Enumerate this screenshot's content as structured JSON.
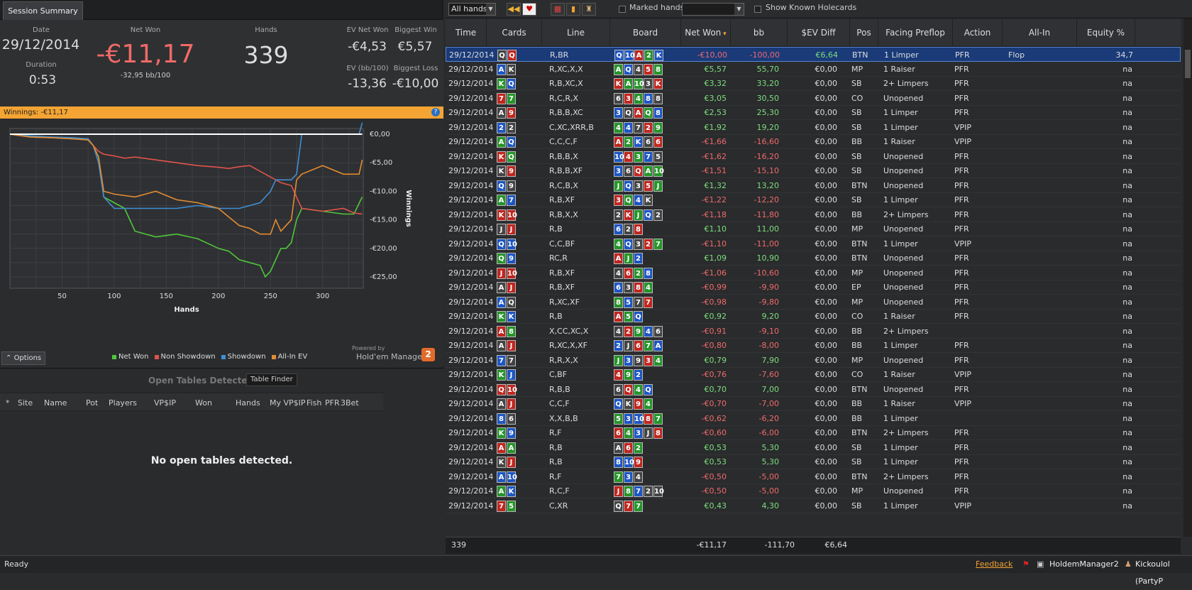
{
  "left_panel": {
    "tab": "Session Summary",
    "date_label": "Date",
    "date_value": "29/12/2014",
    "duration_label": "Duration",
    "duration_value": "0:53",
    "netwon_label": "Net Won",
    "netwon_value": "-€11,17",
    "netwon_sub": "-32,95 bb/100",
    "hands_label": "Hands",
    "hands_value": "339",
    "evnet_label": "EV Net Won",
    "evnet_value": "-€4,53",
    "evbb_label": "EV (bb/100)",
    "evbb_value": "-13,36",
    "bigwin_label": "Biggest Win",
    "bigwin_value": "€5,57",
    "bigloss_label": "Biggest Loss",
    "bigloss_value": "-€10,00",
    "winnings_bar": "Winnings:  -€11,17",
    "options_label": "Options",
    "powered_by": "Powered by",
    "hm_logo_text": "Hold'em Manager",
    "hm_logo_badge": "2"
  },
  "chart_data": {
    "type": "line",
    "xlabel": "Hands",
    "ylabel": "Winnings",
    "xlim": [
      0,
      339
    ],
    "ylim": [
      -27,
      1
    ],
    "x_ticks": [
      "50",
      "100",
      "150",
      "200",
      "250",
      "300"
    ],
    "y_ticks": [
      "€0,00",
      "-€5,00",
      "-€10,00",
      "-€15,00",
      "-€20,00",
      "-€25,00"
    ],
    "grid": true,
    "legend_position": "bottom",
    "series": [
      {
        "name": "Net Won",
        "color": "#4ec83a",
        "x": [
          0,
          20,
          40,
          60,
          75,
          80,
          85,
          90,
          100,
          110,
          120,
          140,
          160,
          180,
          200,
          210,
          220,
          230,
          240,
          245,
          250,
          255,
          260,
          265,
          270,
          275,
          280,
          300,
          320,
          330,
          338
        ],
        "values": [
          0,
          -0.5,
          -0.6,
          -0.8,
          -1,
          -2,
          -4,
          -11,
          -12,
          -13,
          -17,
          -18,
          -17.5,
          -18.3,
          -20,
          -20.5,
          -22,
          -22.5,
          -23,
          -25,
          -24,
          -22,
          -20,
          -20,
          -19,
          -15,
          -13,
          -13.5,
          -14,
          -14,
          -11
        ]
      },
      {
        "name": "Non Showdown",
        "color": "#e0534b",
        "x": [
          0,
          20,
          40,
          60,
          75,
          80,
          85,
          90,
          100,
          110,
          120,
          140,
          160,
          180,
          200,
          210,
          220,
          230,
          240,
          250,
          260,
          270,
          280,
          300,
          320,
          330,
          338
        ],
        "values": [
          0,
          -0.5,
          -0.6,
          -0.8,
          -1,
          -2,
          -3,
          -3.5,
          -3.8,
          -4.2,
          -4,
          -4.5,
          -5,
          -5.5,
          -5.8,
          -6,
          -5.7,
          -5.5,
          -6.5,
          -7.5,
          -8.5,
          -9,
          -13,
          -13.5,
          -13,
          -13.8,
          -14
        ]
      },
      {
        "name": "Showdown",
        "color": "#3e8fd6",
        "x": [
          0,
          20,
          40,
          60,
          75,
          80,
          85,
          90,
          100,
          120,
          140,
          160,
          180,
          200,
          220,
          240,
          250,
          255,
          260,
          270,
          275,
          280,
          300,
          320,
          335,
          338
        ],
        "values": [
          0,
          -0.3,
          -0.5,
          -0.6,
          -0.8,
          -2,
          -5,
          -11,
          -13,
          -13,
          -13,
          -13,
          -12.5,
          -13,
          -13,
          -12,
          -10,
          -8,
          -8,
          -8,
          -7,
          0,
          0,
          0,
          0,
          2
        ]
      },
      {
        "name": "All-In EV",
        "color": "#e38b32",
        "x": [
          0,
          20,
          40,
          60,
          75,
          80,
          85,
          90,
          100,
          120,
          140,
          160,
          180,
          200,
          210,
          220,
          230,
          240,
          250,
          255,
          260,
          270,
          275,
          280,
          300,
          320,
          335,
          338
        ],
        "values": [
          0,
          -0.5,
          -0.6,
          -0.8,
          -1,
          -2,
          -4,
          -10,
          -10.5,
          -11,
          -10,
          -11.5,
          -12,
          -13,
          -14.5,
          -16,
          -16.5,
          -17.5,
          -17.5,
          -15,
          -17,
          -15,
          -8,
          -7,
          -5.5,
          -7,
          -7,
          -4.5
        ]
      },
      {
        "name": "",
        "color": "#ffffff",
        "x": [
          0,
          338
        ],
        "values": [
          0,
          0
        ]
      }
    ]
  },
  "open_tables": {
    "title": "Open Tables Detected",
    "finder": "Table Finder",
    "columns": [
      "*",
      "Site",
      "Name",
      "Pot",
      "Players",
      "VP$IP",
      "Won",
      "Hands",
      "My VP$IP",
      "Fish",
      "PFR",
      "3Bet"
    ],
    "empty": "No open tables detected."
  },
  "toolbar": {
    "filter": "All hands",
    "marked_label": "Marked hands",
    "known_label": "Show Known Holecards"
  },
  "grid": {
    "columns": [
      "Time",
      "Cards",
      "Line",
      "Board",
      "Net Won",
      "bb",
      "$EV Diff",
      "Pos",
      "Facing Preflop",
      "Action",
      "All-In",
      "Equity %"
    ],
    "rows": [
      [
        "29/12/2014",
        [
          "Q",
          "Q"
        ],
        "R,BR",
        [
          "Q",
          "10",
          "A",
          "2",
          "K"
        ],
        "-€10,00",
        "-100,00",
        "€6,64",
        "BTN",
        "1 Limper",
        "PFR",
        "Flop",
        "34,7"
      ],
      [
        "29/12/2014",
        [
          "A",
          "K"
        ],
        "R,XC,X,X",
        [
          "A",
          "Q",
          "4",
          "5",
          "8"
        ],
        "€5,57",
        "55,70",
        "€0,00",
        "MP",
        "1 Raiser",
        "PFR",
        "",
        "na"
      ],
      [
        "29/12/2014",
        [
          "K",
          "Q"
        ],
        "R,B,XC,X",
        [
          "K",
          "A",
          "10",
          "3",
          "K"
        ],
        "€3,32",
        "33,20",
        "€0,00",
        "SB",
        "2+ Limpers",
        "PFR",
        "",
        "na"
      ],
      [
        "29/12/2014",
        [
          "7",
          "7"
        ],
        "R,C,R,X",
        [
          "6",
          "3",
          "4",
          "8",
          "8"
        ],
        "€3,05",
        "30,50",
        "€0,00",
        "CO",
        "Unopened",
        "PFR",
        "",
        "na"
      ],
      [
        "29/12/2014",
        [
          "A",
          "9"
        ],
        "R,B,B,XC",
        [
          "3",
          "Q",
          "A",
          "Q",
          "8"
        ],
        "€2,53",
        "25,30",
        "€0,00",
        "SB",
        "1 Limper",
        "PFR",
        "",
        "na"
      ],
      [
        "29/12/2014",
        [
          "2",
          "2"
        ],
        "C,XC,XRR,B",
        [
          "4",
          "4",
          "7",
          "2",
          "9"
        ],
        "€1,92",
        "19,20",
        "€0,00",
        "SB",
        "1 Limper",
        "VPIP",
        "",
        "na"
      ],
      [
        "29/12/2014",
        [
          "A",
          "Q"
        ],
        "C,C,C,F",
        [
          "A",
          "2",
          "K",
          "6",
          "6"
        ],
        "-€1,66",
        "-16,60",
        "€0,00",
        "BB",
        "1 Raiser",
        "VPIP",
        "",
        "na"
      ],
      [
        "29/12/2014",
        [
          "K",
          "Q"
        ],
        "R,B,B,X",
        [
          "10",
          "4",
          "3",
          "7",
          "5"
        ],
        "-€1,62",
        "-16,20",
        "€0,00",
        "SB",
        "Unopened",
        "PFR",
        "",
        "na"
      ],
      [
        "29/12/2014",
        [
          "K",
          "9"
        ],
        "R,B,B,XF",
        [
          "3",
          "6",
          "Q",
          "A",
          "10"
        ],
        "-€1,51",
        "-15,10",
        "€0,00",
        "SB",
        "Unopened",
        "PFR",
        "",
        "na"
      ],
      [
        "29/12/2014",
        [
          "Q",
          "9"
        ],
        "R,C,B,X",
        [
          "J",
          "Q",
          "3",
          "5",
          "J"
        ],
        "€1,32",
        "13,20",
        "€0,00",
        "BTN",
        "Unopened",
        "PFR",
        "",
        "na"
      ],
      [
        "29/12/2014",
        [
          "A",
          "7"
        ],
        "R,B,XF",
        [
          "3",
          "Q",
          "4",
          "K"
        ],
        "-€1,22",
        "-12,20",
        "€0,00",
        "SB",
        "1 Limper",
        "PFR",
        "",
        "na"
      ],
      [
        "29/12/2014",
        [
          "K",
          "10"
        ],
        "R,B,X,X",
        [
          "2",
          "K",
          "J",
          "Q",
          "2"
        ],
        "-€1,18",
        "-11,80",
        "€0,00",
        "BB",
        "2+ Limpers",
        "PFR",
        "",
        "na"
      ],
      [
        "29/12/2014",
        [
          "J",
          "J"
        ],
        "R,B",
        [
          "6",
          "2",
          "8"
        ],
        "€1,10",
        "11,00",
        "€0,00",
        "MP",
        "Unopened",
        "PFR",
        "",
        "na"
      ],
      [
        "29/12/2014",
        [
          "Q",
          "10"
        ],
        "C,C,BF",
        [
          "4",
          "Q",
          "3",
          "2",
          "7"
        ],
        "-€1,10",
        "-11,00",
        "€0,00",
        "BTN",
        "1 Limper",
        "VPIP",
        "",
        "na"
      ],
      [
        "29/12/2014",
        [
          "Q",
          "9"
        ],
        "RC,R",
        [
          "A",
          "J",
          "2"
        ],
        "€1,09",
        "10,90",
        "€0,00",
        "BTN",
        "Unopened",
        "PFR",
        "",
        "na"
      ],
      [
        "29/12/2014",
        [
          "J",
          "10"
        ],
        "R,B,XF",
        [
          "4",
          "6",
          "2",
          "8"
        ],
        "-€1,06",
        "-10,60",
        "€0,00",
        "MP",
        "Unopened",
        "PFR",
        "",
        "na"
      ],
      [
        "29/12/2014",
        [
          "A",
          "J"
        ],
        "R,B,XF",
        [
          "6",
          "3",
          "8",
          "4"
        ],
        "-€0,99",
        "-9,90",
        "€0,00",
        "EP",
        "Unopened",
        "PFR",
        "",
        "na"
      ],
      [
        "29/12/2014",
        [
          "A",
          "Q"
        ],
        "R,XC,XF",
        [
          "8",
          "5",
          "7",
          "7"
        ],
        "-€0,98",
        "-9,80",
        "€0,00",
        "MP",
        "Unopened",
        "PFR",
        "",
        "na"
      ],
      [
        "29/12/2014",
        [
          "K",
          "K"
        ],
        "R,B",
        [
          "A",
          "5",
          "Q"
        ],
        "€0,92",
        "9,20",
        "€0,00",
        "CO",
        "1 Raiser",
        "PFR",
        "",
        "na"
      ],
      [
        "29/12/2014",
        [
          "A",
          "8"
        ],
        "X,CC,XC,X",
        [
          "4",
          "2",
          "9",
          "4",
          "6"
        ],
        "-€0,91",
        "-9,10",
        "€0,00",
        "BB",
        "2+ Limpers",
        "",
        "",
        "na"
      ],
      [
        "29/12/2014",
        [
          "A",
          "J"
        ],
        "R,XC,X,XF",
        [
          "2",
          "J",
          "6",
          "7",
          "A"
        ],
        "-€0,80",
        "-8,00",
        "€0,00",
        "BB",
        "1 Limper",
        "PFR",
        "",
        "na"
      ],
      [
        "29/12/2014",
        [
          "7",
          "7"
        ],
        "R,R,X,X",
        [
          "J",
          "3",
          "9",
          "3",
          "4"
        ],
        "€0,79",
        "7,90",
        "€0,00",
        "MP",
        "Unopened",
        "PFR",
        "",
        "na"
      ],
      [
        "29/12/2014",
        [
          "K",
          "J"
        ],
        "C,BF",
        [
          "4",
          "9",
          "2"
        ],
        "-€0,76",
        "-7,60",
        "€0,00",
        "CO",
        "1 Raiser",
        "VPIP",
        "",
        "na"
      ],
      [
        "29/12/2014",
        [
          "Q",
          "10"
        ],
        "R,B,B",
        [
          "6",
          "Q",
          "4",
          "Q"
        ],
        "€0,70",
        "7,00",
        "€0,00",
        "BTN",
        "Unopened",
        "PFR",
        "",
        "na"
      ],
      [
        "29/12/2014",
        [
          "A",
          "J"
        ],
        "C,C,F",
        [
          "Q",
          "K",
          "9",
          "4"
        ],
        "-€0,70",
        "-7,00",
        "€0,00",
        "BB",
        "1 Raiser",
        "VPIP",
        "",
        "na"
      ],
      [
        "29/12/2014",
        [
          "8",
          "6"
        ],
        "X,X,B,B",
        [
          "5",
          "3",
          "10",
          "8",
          "7"
        ],
        "-€0,62",
        "-6,20",
        "€0,00",
        "BB",
        "1 Limper",
        "",
        "",
        "na"
      ],
      [
        "29/12/2014",
        [
          "K",
          "9"
        ],
        "R,F",
        [
          "6",
          "4",
          "3",
          "J",
          "8"
        ],
        "-€0,60",
        "-6,00",
        "€0,00",
        "BTN",
        "2+ Limpers",
        "PFR",
        "",
        "na"
      ],
      [
        "29/12/2014",
        [
          "A",
          "A"
        ],
        "R,B",
        [
          "A",
          "6",
          "2"
        ],
        "€0,53",
        "5,30",
        "€0,00",
        "SB",
        "1 Limper",
        "PFR",
        "",
        "na"
      ],
      [
        "29/12/2014",
        [
          "K",
          "J"
        ],
        "R,B",
        [
          "8",
          "10",
          "9"
        ],
        "€0,53",
        "5,30",
        "€0,00",
        "SB",
        "1 Limper",
        "PFR",
        "",
        "na"
      ],
      [
        "29/12/2014",
        [
          "A",
          "10"
        ],
        "R,F",
        [
          "7",
          "3",
          "4"
        ],
        "-€0,50",
        "-5,00",
        "€0,00",
        "BTN",
        "2+ Limpers",
        "PFR",
        "",
        "na"
      ],
      [
        "29/12/2014",
        [
          "A",
          "K"
        ],
        "R,C,F",
        [
          "J",
          "8",
          "7",
          "2",
          "10"
        ],
        "-€0,50",
        "-5,00",
        "€0,00",
        "MP",
        "Unopened",
        "PFR",
        "",
        "na"
      ],
      [
        "29/12/2014",
        [
          "7",
          "5"
        ],
        "C,XR",
        [
          "Q",
          "7",
          "7"
        ],
        "€0,43",
        "4,30",
        "€0,00",
        "SB",
        "1 Limper",
        "VPIP",
        "",
        "na"
      ]
    ],
    "footer": {
      "count": "339",
      "net": "-€11,17",
      "bb": "-111,70",
      "ev": "€6,64"
    }
  },
  "status": {
    "ready": "Ready",
    "feedback": "Feedback",
    "app": "HoldemManager2",
    "user": "Kickoulol (PartyP"
  }
}
